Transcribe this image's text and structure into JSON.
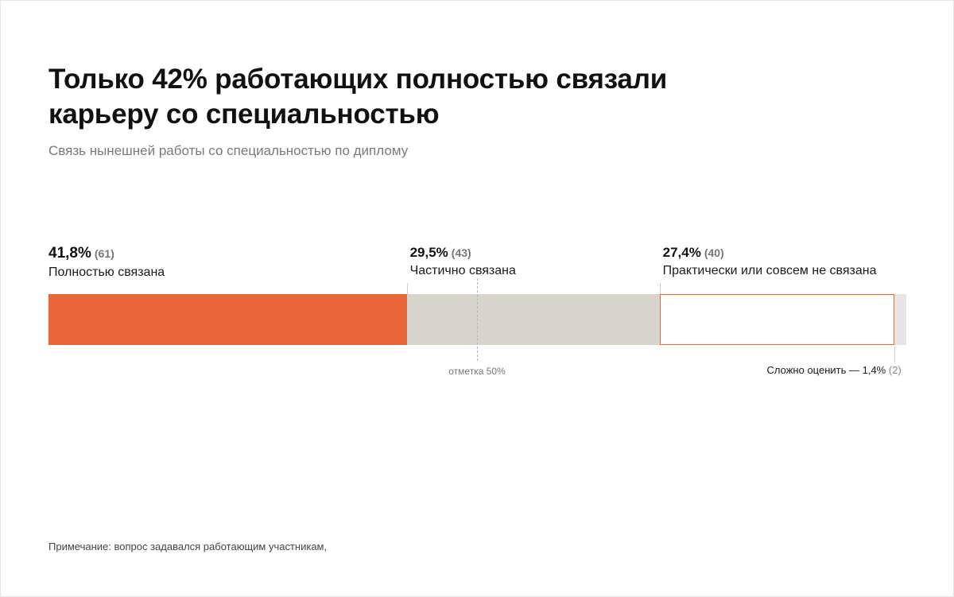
{
  "title": "Только 42% работающих полностью связали карьеру со специальностью",
  "subtitle": "Связь нынешней работы со специальностью по диплому",
  "chart_data": {
    "type": "bar",
    "orientation": "horizontal-stacked",
    "total": 100,
    "segments": [
      {
        "label": "Полностью связана",
        "pct_text": "41,8%",
        "count_text": "(61)",
        "value": 41.8,
        "count": 61,
        "color": "#E8663A",
        "style": "filled"
      },
      {
        "label": "Частично связана",
        "pct_text": "29,5%",
        "count_text": "(43)",
        "value": 29.5,
        "count": 43,
        "color": "#D8D5CF",
        "style": "filled"
      },
      {
        "label": "Практически или совсем не связана",
        "pct_text": "27,4%",
        "count_text": "(40)",
        "value": 27.4,
        "count": 40,
        "color": "#E8663A",
        "style": "outline"
      },
      {
        "label": "Сложно оценить",
        "pct_text": "1,4%",
        "count_text": "(2)",
        "value": 1.4,
        "count": 2,
        "color": "#E9E6E1",
        "style": "filled"
      }
    ],
    "marker": {
      "value": 50,
      "label": "отметка 50%"
    },
    "hard_to_say_text": "Сложно оценить — 1,4%"
  },
  "note": "Примечание: вопрос задавался работающим участникам,"
}
